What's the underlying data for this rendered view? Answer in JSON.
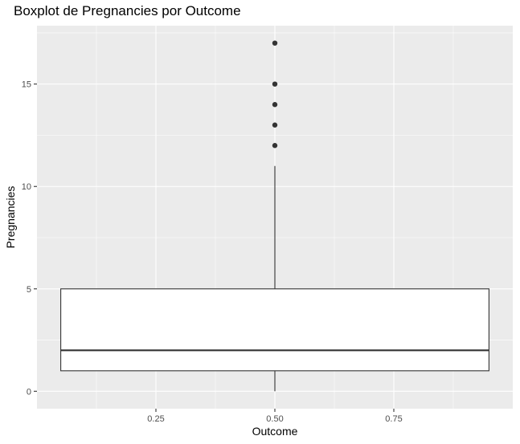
{
  "chart_data": {
    "type": "boxplot",
    "title": "Boxplot de Pregnancies por Outcome",
    "xlabel": "Outcome",
    "ylabel": "Pregnancies",
    "x_ticks": [
      0.25,
      0.5,
      0.75
    ],
    "x_tick_labels": [
      "0.25",
      "0.50",
      "0.75"
    ],
    "y_ticks": [
      0,
      5,
      10,
      15
    ],
    "y_tick_labels": [
      "0",
      "5",
      "10",
      "15"
    ],
    "xlim": [
      0.0,
      1.0
    ],
    "ylim": [
      -0.85,
      17.85
    ],
    "grid": true,
    "box": {
      "x": 0.5,
      "xmin": 0.05,
      "xmax": 0.95,
      "whisker_low": 0,
      "q1": 1,
      "median": 2,
      "q3": 5,
      "whisker_high": 11,
      "outliers": [
        12,
        13,
        14,
        15,
        17
      ]
    },
    "colors": {
      "panel": "#ebebeb",
      "grid_major": "#ffffff",
      "box_fill": "#ffffff",
      "box_stroke": "#333333",
      "outlier": "#333333"
    }
  }
}
